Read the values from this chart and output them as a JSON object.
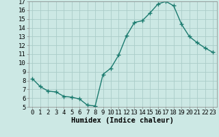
{
  "x": [
    0,
    1,
    2,
    3,
    4,
    5,
    6,
    7,
    8,
    9,
    10,
    11,
    12,
    13,
    14,
    15,
    16,
    17,
    18,
    19,
    20,
    21,
    22,
    23
  ],
  "y": [
    8.2,
    7.3,
    6.8,
    6.7,
    6.2,
    6.1,
    5.9,
    5.2,
    5.1,
    8.7,
    9.4,
    10.9,
    13.1,
    14.6,
    14.8,
    15.7,
    16.7,
    17.0,
    16.5,
    14.4,
    13.0,
    12.3,
    11.7,
    11.2
  ],
  "line_color": "#1a7a6e",
  "marker": "+",
  "bg_color": "#cce8e4",
  "grid_color": "#aaccc8",
  "xlabel": "Humidex (Indice chaleur)",
  "ylim": [
    5,
    17
  ],
  "xlim": [
    -0.5,
    23.5
  ],
  "yticks": [
    5,
    6,
    7,
    8,
    9,
    10,
    11,
    12,
    13,
    14,
    15,
    16,
    17
  ],
  "xticks": [
    0,
    1,
    2,
    3,
    4,
    5,
    6,
    7,
    8,
    9,
    10,
    11,
    12,
    13,
    14,
    15,
    16,
    17,
    18,
    19,
    20,
    21,
    22,
    23
  ],
  "xlabel_fontsize": 7.5,
  "tick_fontsize": 6.5,
  "linewidth": 1.0,
  "markersize": 4,
  "markeredgewidth": 1.0
}
